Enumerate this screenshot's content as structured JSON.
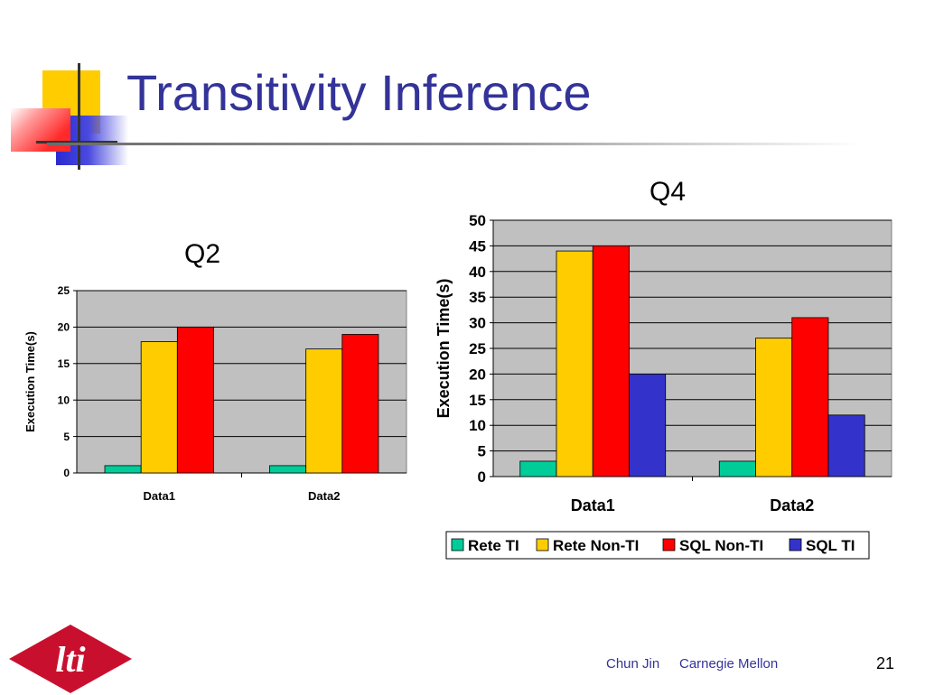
{
  "slide": {
    "title": "Transitivity Inference",
    "footer_author": "Chun Jin",
    "footer_org": "Carnegie Mellon",
    "page_number": "21",
    "logo_text": "lti"
  },
  "colors": {
    "title": "#333399",
    "footer": "#333399",
    "plot_bg": "#C0C0C0",
    "rete_ti": "#00CC99",
    "rete_non_ti": "#FFCC00",
    "sql_non_ti": "#FF0000",
    "sql_ti": "#3333CC",
    "logo": "#C8102E"
  },
  "chart_data": [
    {
      "type": "bar",
      "title": "Q2",
      "ylabel": "Execution Time(s)",
      "xlabel": "",
      "categories": [
        "Data1",
        "Data2"
      ],
      "ylim": [
        0,
        25
      ],
      "yticks": [
        0,
        5,
        10,
        15,
        20,
        25
      ],
      "grid": true,
      "legend": "none",
      "series": [
        {
          "values": [
            1,
            1
          ],
          "color": "#00CC99"
        },
        {
          "values": [
            18,
            17
          ],
          "color": "#FFCC00"
        },
        {
          "values": [
            20,
            19
          ],
          "color": "#FF0000"
        }
      ]
    },
    {
      "type": "bar",
      "title": "Q4",
      "ylabel": "Execution Time(s)",
      "xlabel": "",
      "categories": [
        "Data1",
        "Data2"
      ],
      "ylim": [
        0,
        50
      ],
      "yticks": [
        0,
        5,
        10,
        15,
        20,
        25,
        30,
        35,
        40,
        45,
        50
      ],
      "grid": true,
      "legend": "bottom",
      "series": [
        {
          "name": "Rete TI",
          "values": [
            3,
            3
          ],
          "color": "#00CC99"
        },
        {
          "name": "Rete Non-TI",
          "values": [
            44,
            27
          ],
          "color": "#FFCC00"
        },
        {
          "name": "SQL Non-TI",
          "values": [
            45,
            31
          ],
          "color": "#FF0000"
        },
        {
          "name": "SQL TI",
          "values": [
            20,
            12
          ],
          "color": "#3333CC"
        }
      ]
    }
  ]
}
